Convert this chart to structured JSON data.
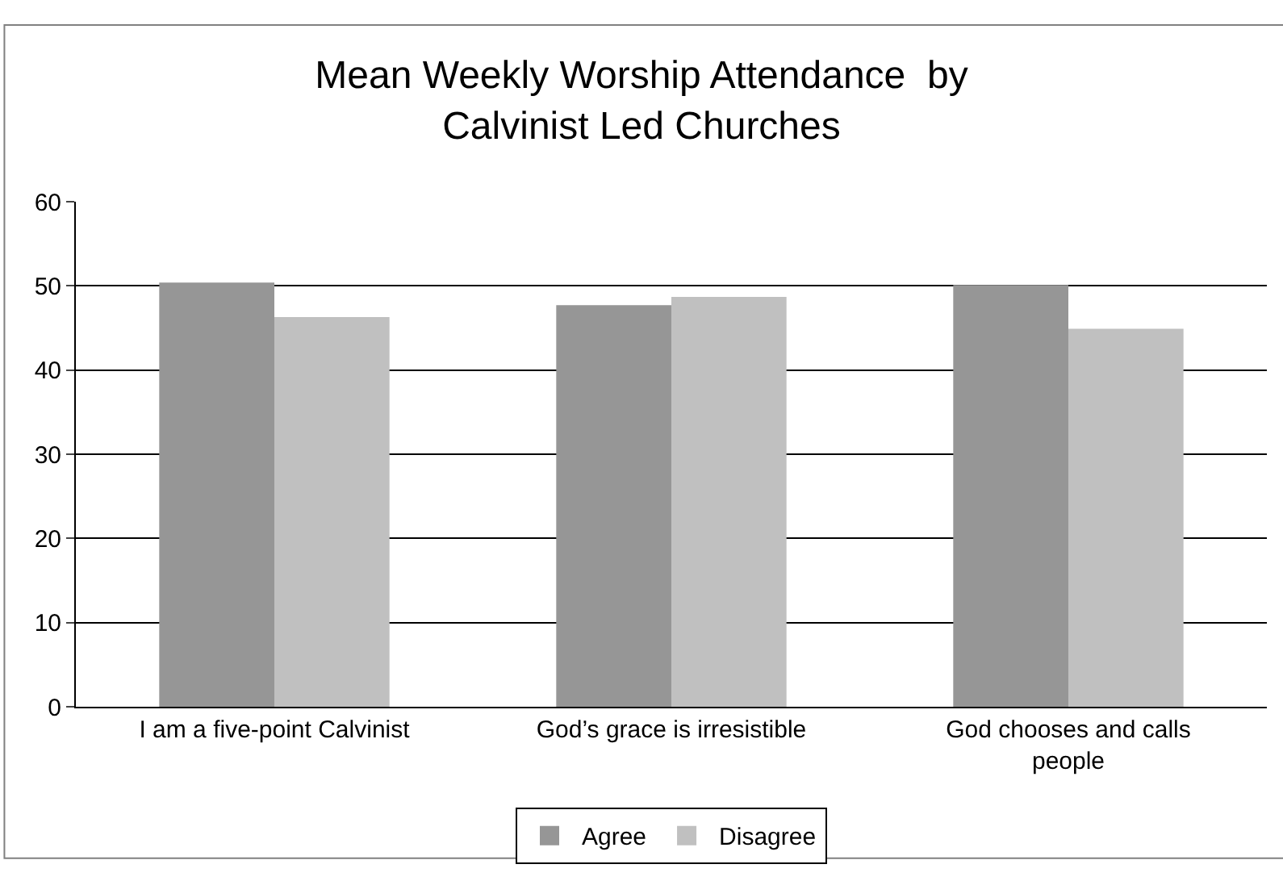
{
  "chart_data": {
    "type": "bar",
    "title": "Mean Weekly Worship Attendance  by\nCalvinist Led Churches",
    "categories": [
      "I am a five-point Calvinist",
      "God’s grace is irresistible",
      "God chooses and calls\npeople"
    ],
    "series": [
      {
        "name": "Agree",
        "color": "#969696",
        "values": [
          50.4,
          47.7,
          50.1
        ]
      },
      {
        "name": "Disagree",
        "color": "#c0c0c0",
        "values": [
          46.3,
          48.7,
          44.9
        ]
      }
    ],
    "ylim": [
      0,
      60
    ],
    "yticks": [
      0,
      10,
      20,
      30,
      40,
      50,
      60
    ],
    "grid": "y",
    "legend": "bottom"
  }
}
